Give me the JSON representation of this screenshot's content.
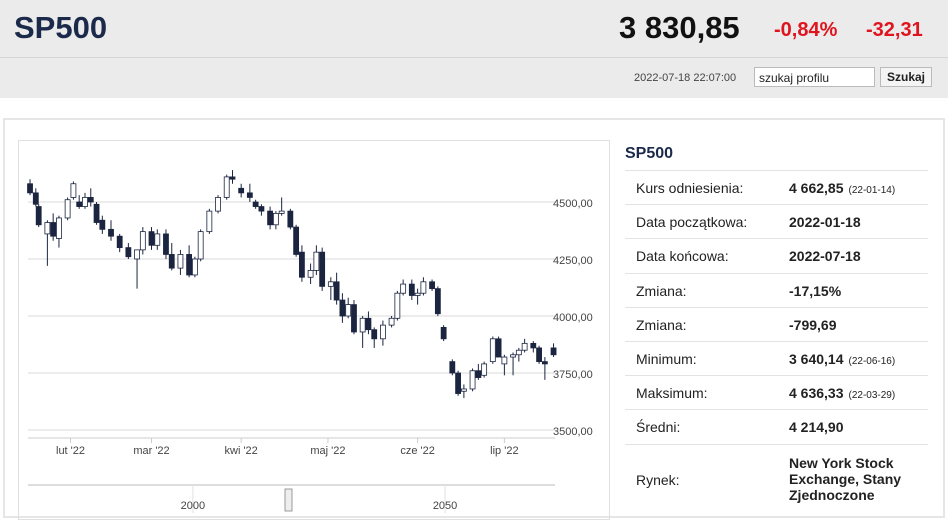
{
  "header": {
    "symbol": "SP500",
    "price": "3 830,85",
    "change_pct": "-0,84%",
    "change": "-32,31",
    "timestamp": "2022-07-18 22:07:00",
    "search_placeholder": "szukaj profilu",
    "search_button": "Szukaj"
  },
  "chart_data": {
    "type": "candlestick",
    "up_color": "#ffffff",
    "down_color": "#1b2540",
    "grid": true,
    "x": [
      18,
      20,
      21,
      24,
      26,
      28,
      31,
      33,
      35,
      37,
      39,
      41,
      43,
      46,
      49,
      52,
      55,
      57,
      60,
      62,
      65,
      67,
      70,
      73,
      75,
      77,
      80,
      83,
      86,
      88,
      91,
      94,
      96,
      98,
      101,
      103,
      105,
      108,
      110,
      112,
      115,
      117,
      119,
      122,
      124,
      126,
      128,
      130,
      133,
      135,
      137,
      140,
      143,
      145,
      147,
      150,
      152,
      154,
      157,
      159,
      161,
      164,
      166,
      168,
      171,
      173,
      175,
      178,
      180,
      182,
      185,
      187,
      189,
      192,
      194,
      196,
      199
    ],
    "open": [
      4580,
      4540,
      4480,
      4360,
      4410,
      4340,
      4430,
      4520,
      4500,
      4480,
      4520,
      4490,
      4420,
      4380,
      4350,
      4300,
      4250,
      4290,
      4370,
      4310,
      4360,
      4270,
      4210,
      4270,
      4180,
      4250,
      4370,
      4460,
      4520,
      4610,
      4560,
      4540,
      4500,
      4480,
      4460,
      4400,
      4450,
      4460,
      4390,
      4280,
      4170,
      4200,
      4280,
      4130,
      4150,
      4070,
      4000,
      4050,
      3930,
      3990,
      3940,
      3900,
      3960,
      3990,
      4100,
      4140,
      4090,
      4100,
      4150,
      4120,
      3950,
      3800,
      3750,
      3670,
      3680,
      3760,
      3740,
      3800,
      3900,
      3790,
      3820,
      3830,
      3850,
      3880,
      3860,
      3800,
      3860
    ],
    "high": [
      4600,
      4560,
      4490,
      4420,
      4450,
      4440,
      4520,
      4590,
      4530,
      4540,
      4560,
      4500,
      4440,
      4420,
      4360,
      4320,
      4280,
      4390,
      4390,
      4380,
      4380,
      4320,
      4290,
      4310,
      4260,
      4380,
      4470,
      4530,
      4620,
      4640,
      4580,
      4580,
      4510,
      4490,
      4480,
      4460,
      4520,
      4470,
      4400,
      4310,
      4230,
      4310,
      4300,
      4170,
      4190,
      4100,
      4080,
      4070,
      4000,
      4020,
      3950,
      3980,
      4000,
      4110,
      4160,
      4160,
      4120,
      4170,
      4160,
      4130,
      3960,
      3810,
      3760,
      3700,
      3770,
      3790,
      3800,
      3910,
      3910,
      3830,
      3840,
      3860,
      3900,
      3890,
      3870,
      3820,
      3880
    ],
    "low": [
      4530,
      4480,
      4390,
      4220,
      4330,
      4300,
      4420,
      4510,
      4470,
      4470,
      4480,
      4400,
      4360,
      4330,
      4280,
      4250,
      4120,
      4270,
      4290,
      4290,
      4250,
      4200,
      4180,
      4170,
      4170,
      4240,
      4360,
      4450,
      4510,
      4580,
      4520,
      4500,
      4470,
      4440,
      4380,
      4380,
      4440,
      4380,
      4260,
      4150,
      4140,
      4180,
      4110,
      4070,
      4050,
      3970,
      3990,
      3920,
      3860,
      3920,
      3860,
      3870,
      3950,
      3980,
      4090,
      4070,
      4050,
      4090,
      4110,
      4000,
      3890,
      3740,
      3650,
      3640,
      3670,
      3720,
      3730,
      3790,
      3820,
      3740,
      3740,
      3800,
      3840,
      3840,
      3790,
      3720,
      3820
    ],
    "close": [
      4540,
      4490,
      4400,
      4410,
      4350,
      4430,
      4510,
      4580,
      4480,
      4520,
      4500,
      4410,
      4380,
      4350,
      4300,
      4260,
      4290,
      4370,
      4310,
      4360,
      4270,
      4210,
      4270,
      4180,
      4250,
      4370,
      4460,
      4520,
      4610,
      4600,
      4540,
      4520,
      4480,
      4460,
      4400,
      4450,
      4460,
      4390,
      4270,
      4170,
      4200,
      4280,
      4130,
      4150,
      4070,
      4000,
      4050,
      3930,
      3990,
      3940,
      3900,
      3960,
      3990,
      4100,
      4140,
      4090,
      4100,
      4150,
      4120,
      4010,
      3900,
      3750,
      3660,
      3680,
      3760,
      3730,
      3790,
      3900,
      3820,
      3820,
      3830,
      3850,
      3880,
      3860,
      3800,
      3790,
      3830
    ],
    "xlim": [
      17.3,
      199.5
    ],
    "xticks": [
      {
        "value": 32,
        "label": "lut '22"
      },
      {
        "value": 60,
        "label": "mar '22"
      },
      {
        "value": 91,
        "label": "kwi '22"
      },
      {
        "value": 121,
        "label": "maj '22"
      },
      {
        "value": 152,
        "label": "cze '22"
      },
      {
        "value": 182,
        "label": "lip '22"
      }
    ],
    "ylim": [
      3465,
      4728
    ],
    "yticks": [
      {
        "value": 3500,
        "label": "3500,00"
      },
      {
        "value": 3750,
        "label": "3750,00"
      },
      {
        "value": 4000,
        "label": "4000,00"
      },
      {
        "value": 4250,
        "label": "4250,00"
      },
      {
        "value": 4500,
        "label": "4500,00"
      }
    ]
  },
  "navigator": {
    "xlim": [
      1967.3,
      2071.8
    ],
    "xticks": [
      2000,
      2050
    ]
  },
  "table": {
    "title": "SP500",
    "rows": [
      [
        "Kurs odniesienia:",
        "4 662,85",
        "(22-01-14)"
      ],
      [
        "Data początkowa:",
        "2022-01-18"
      ],
      [
        "Data końcowa:",
        "2022-07-18"
      ],
      [
        "Zmiana:",
        "-17,15%"
      ],
      [
        "Zmiana:",
        "-799,69"
      ],
      [
        "Minimum:",
        "3 640,14",
        "(22-06-16)"
      ],
      [
        "Maksimum:",
        "4 636,33",
        "(22-03-29)"
      ],
      [
        "Średni:",
        "4 214,90"
      ],
      [
        "Rynek:",
        "New York Stock Exchange, Stany Zjednoczone"
      ]
    ]
  }
}
